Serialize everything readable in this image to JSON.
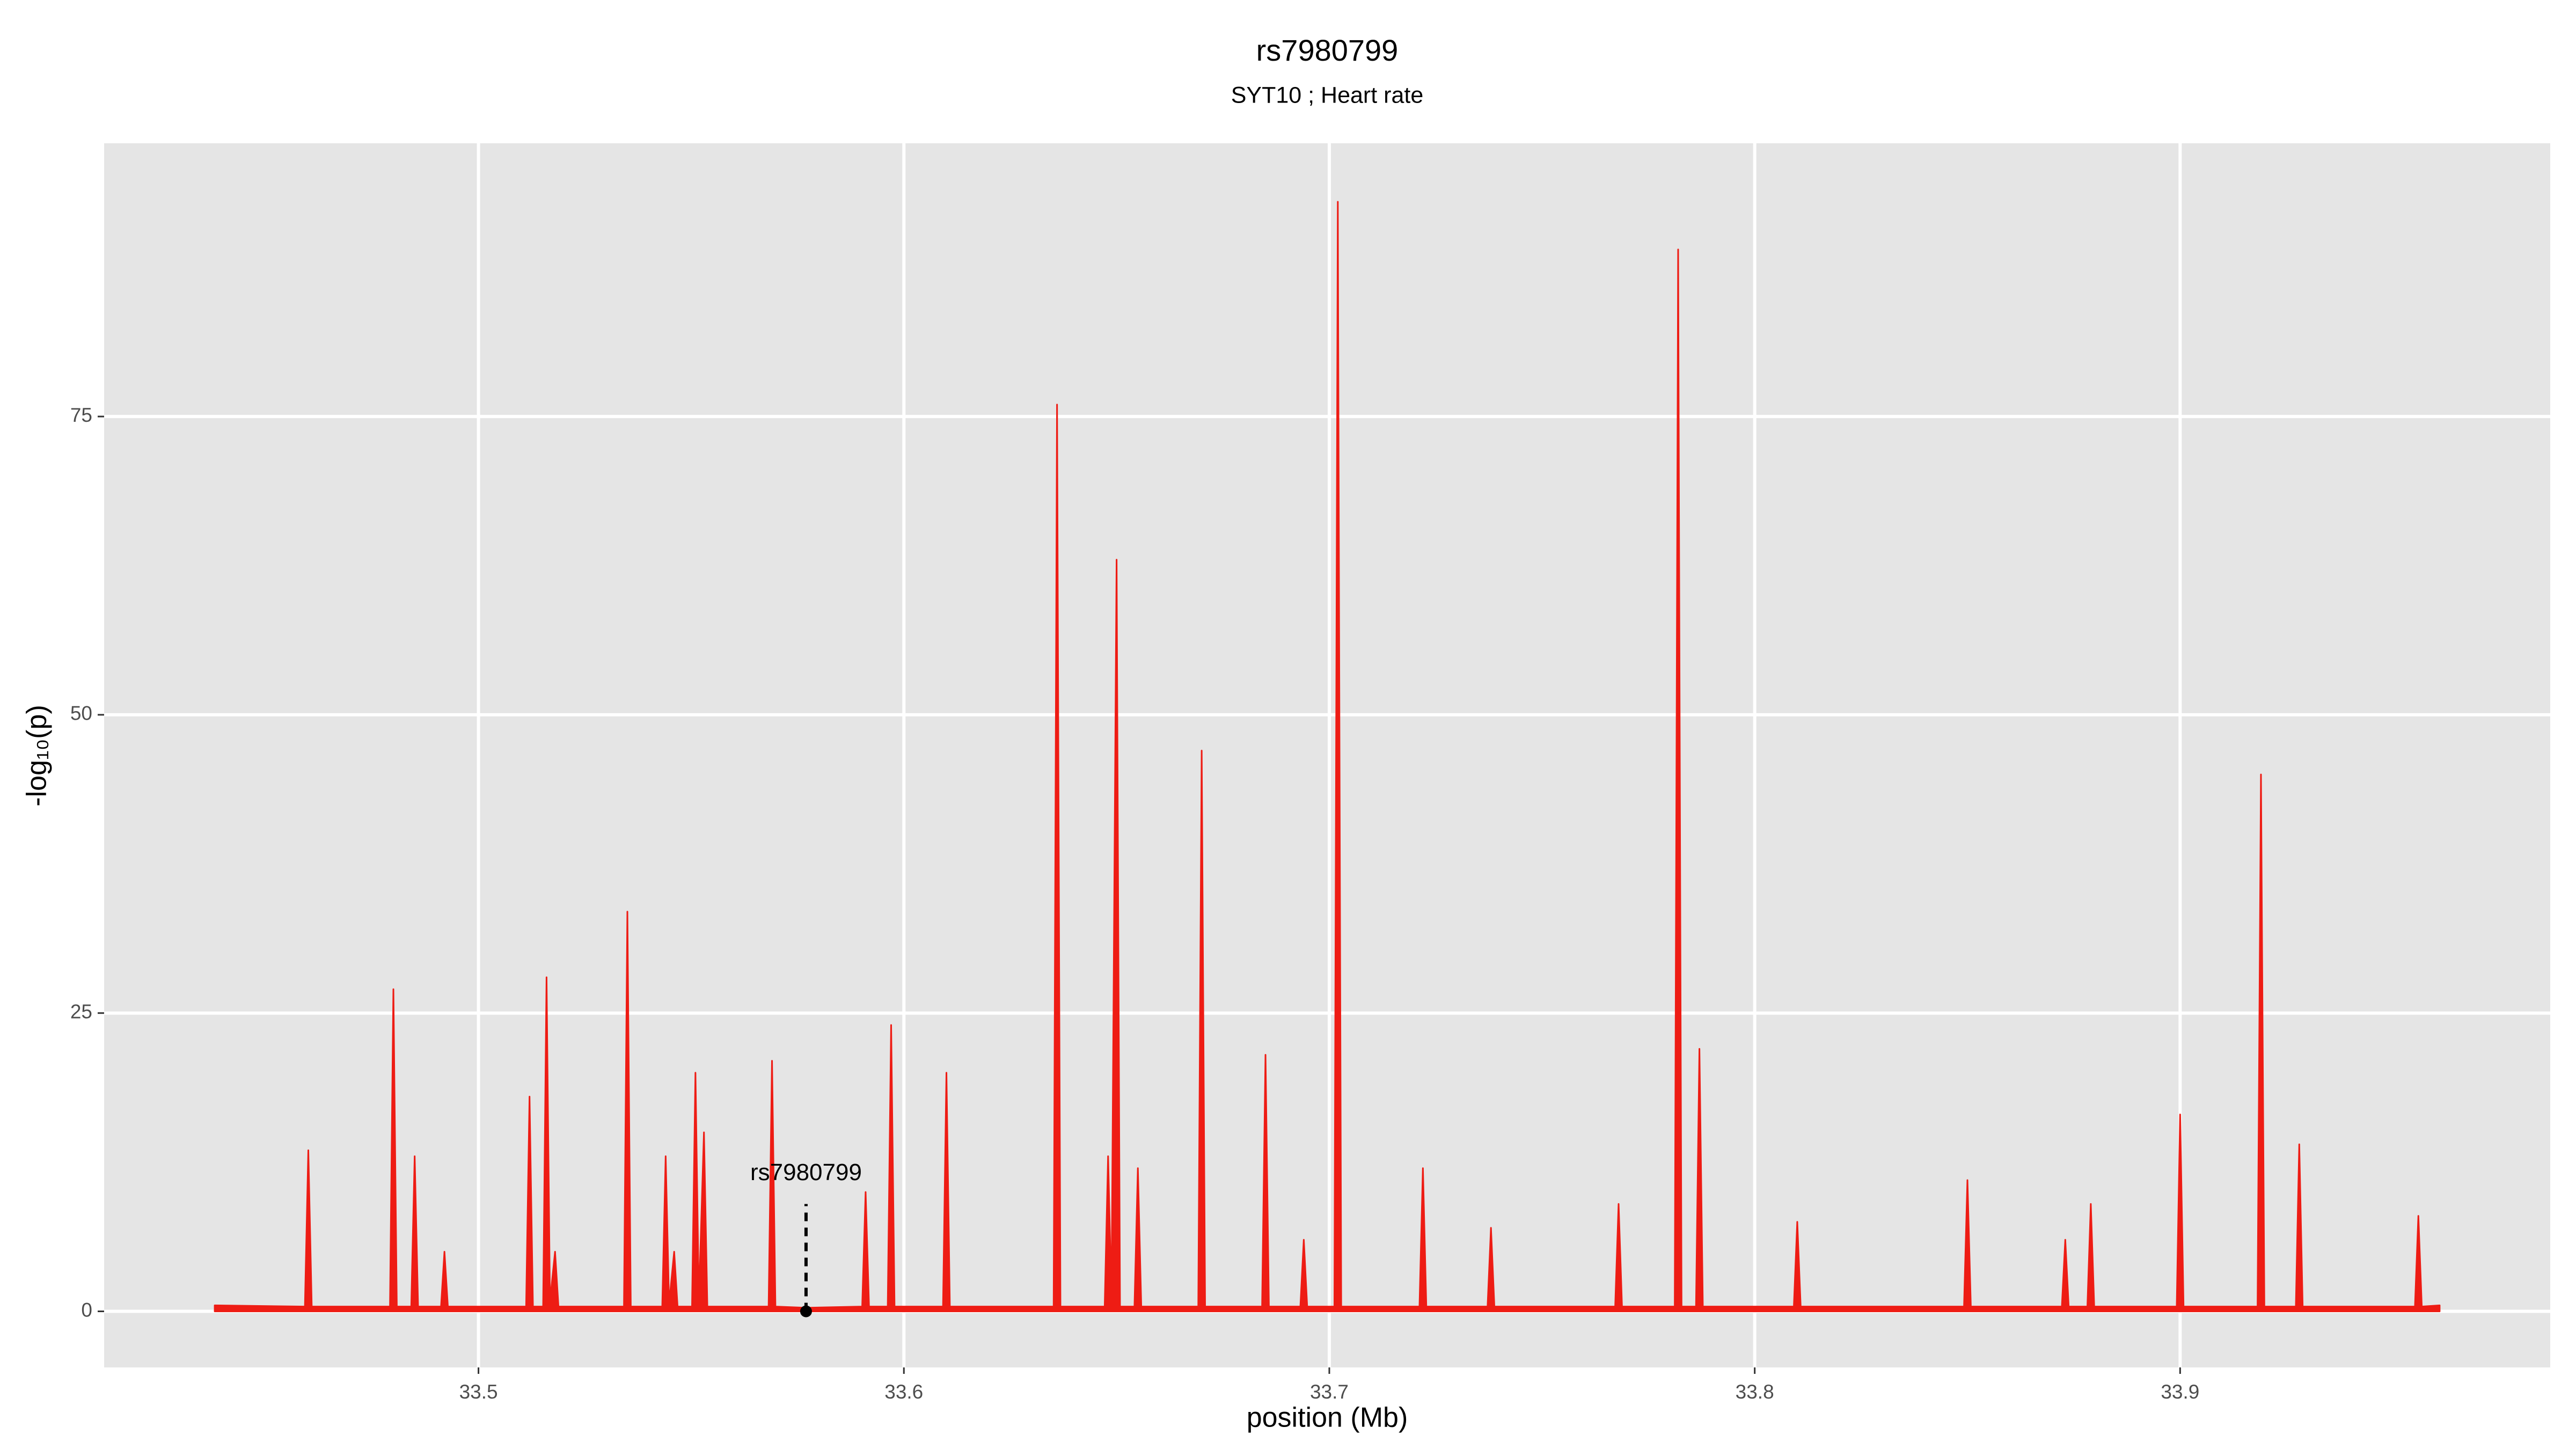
{
  "chart_data": {
    "type": "area",
    "title": "rs7980799",
    "subtitle": "SYT10 ; Heart rate",
    "x_label": "position (Mb)",
    "y_label": "-log₁₀(p)",
    "color": "#ee1c14",
    "grid": true,
    "xlim": [
      33.412,
      33.987
    ],
    "ylim": [
      -4.7,
      97.9
    ],
    "xticks": [
      33.5,
      33.6,
      33.7,
      33.8,
      33.9
    ],
    "yticks": [
      0,
      25,
      50,
      75
    ],
    "annotation": {
      "text": "rs7980799",
      "x": 33.577,
      "y": 0
    },
    "x": [
      33.438,
      33.4592,
      33.46,
      33.4608,
      33.4792,
      33.48,
      33.4808,
      33.4842,
      33.485,
      33.4858,
      33.4912,
      33.492,
      33.4928,
      33.5112,
      33.512,
      33.5128,
      33.5152,
      33.516,
      33.5168,
      33.518,
      33.5188,
      33.5342,
      33.535,
      33.5358,
      33.5432,
      33.544,
      33.5448,
      33.546,
      33.5468,
      33.5502,
      33.551,
      33.5518,
      33.553,
      33.5538,
      33.5682,
      33.569,
      33.5698,
      33.577,
      33.5902,
      33.591,
      33.5918,
      33.5962,
      33.597,
      33.5978,
      33.6092,
      33.61,
      33.6108,
      33.6352,
      33.636,
      33.6368,
      33.6472,
      33.648,
      33.6488,
      33.65,
      33.6508,
      33.6542,
      33.655,
      33.6558,
      33.6692,
      33.67,
      33.6708,
      33.6842,
      33.685,
      33.6858,
      33.6932,
      33.694,
      33.6948,
      33.7012,
      33.702,
      33.7028,
      33.7212,
      33.722,
      33.7228,
      33.7372,
      33.738,
      33.7388,
      33.7672,
      33.768,
      33.7688,
      33.7812,
      33.782,
      33.7828,
      33.7862,
      33.787,
      33.7878,
      33.8092,
      33.81,
      33.8108,
      33.8492,
      33.85,
      33.8508,
      33.8722,
      33.873,
      33.8738,
      33.8782,
      33.879,
      33.8798,
      33.8992,
      33.9,
      33.9008,
      33.9182,
      33.919,
      33.9198,
      33.9272,
      33.928,
      33.9288,
      33.9552,
      33.956,
      33.9568,
      33.961
    ],
    "values": [
      0.5,
      0.4,
      13.5,
      0.4,
      0.4,
      27,
      0.4,
      0.4,
      13,
      0.4,
      0.4,
      5,
      0.4,
      0.4,
      18,
      0.4,
      0.4,
      28,
      0.8,
      5,
      0.4,
      0.4,
      33.5,
      0.4,
      0.4,
      13,
      0.6,
      5,
      0.4,
      0.4,
      20,
      0.8,
      15,
      0.4,
      0.4,
      21,
      0.4,
      0.3,
      0.4,
      10,
      0.4,
      0.4,
      24,
      0.4,
      0.4,
      20,
      0.4,
      0.4,
      76,
      0.4,
      0.4,
      13,
      1,
      63,
      0.4,
      0.4,
      12,
      0.4,
      0.4,
      47,
      0.4,
      0.4,
      21.5,
      0.4,
      0.4,
      6,
      0.4,
      0.4,
      93,
      0.4,
      0.4,
      12,
      0.4,
      0.4,
      7,
      0.4,
      0.4,
      9,
      0.4,
      0.4,
      89,
      0.4,
      0.4,
      22,
      0.4,
      0.4,
      7.5,
      0.4,
      0.4,
      11,
      0.4,
      0.4,
      6,
      0.4,
      0.4,
      9,
      0.4,
      0.4,
      16.5,
      0.4,
      0.4,
      45,
      0.4,
      0.4,
      14,
      0.4,
      0.4,
      8,
      0.4,
      0.5
    ]
  }
}
